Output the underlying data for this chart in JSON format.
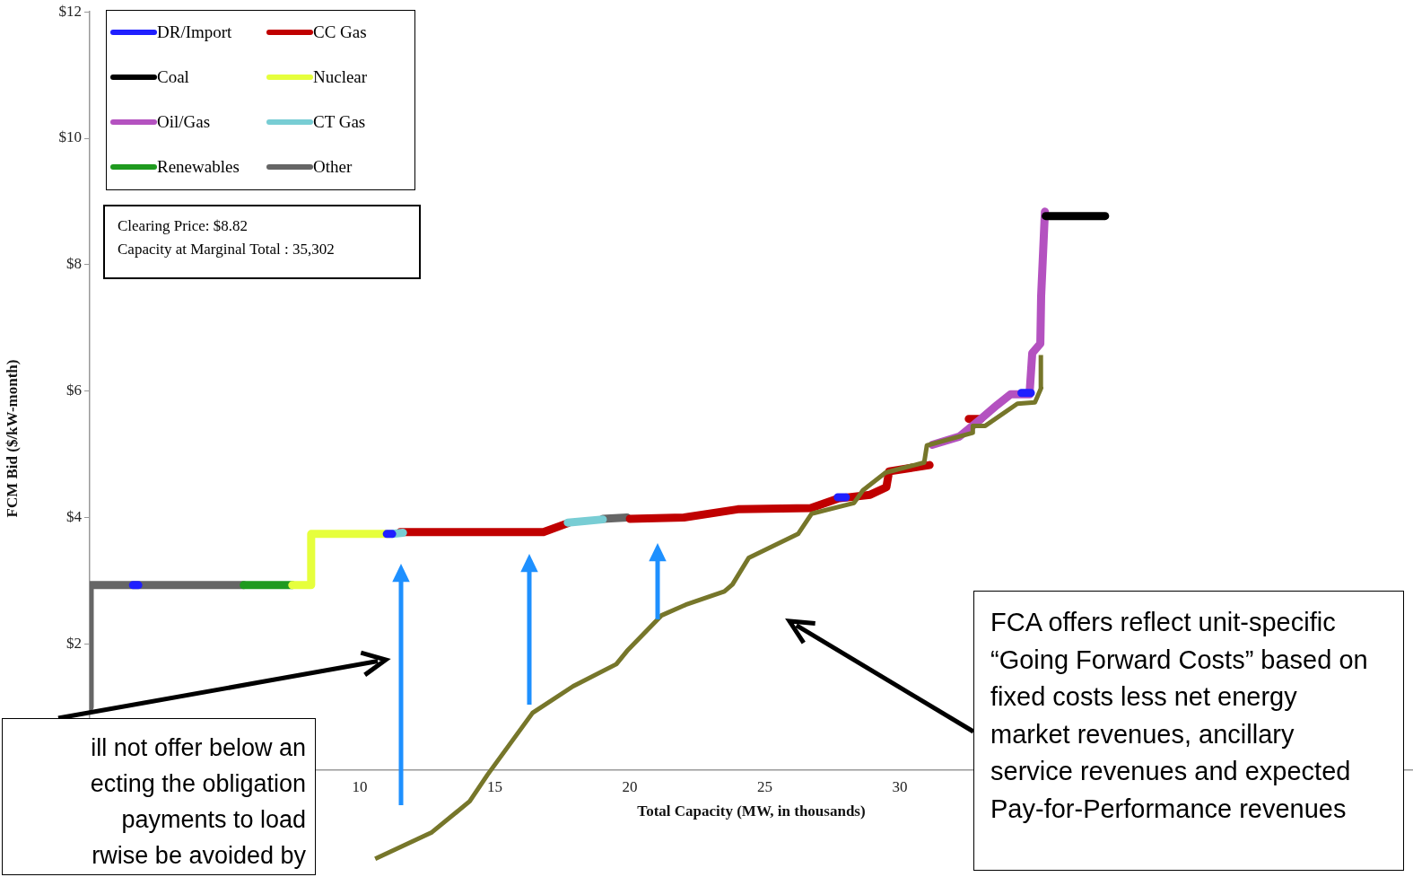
{
  "chart_data": {
    "type": "line",
    "xlabel": "Total Capacity (MW, in thousands)",
    "ylabel": "FCM Bid ($/kW-month)",
    "xlim": [
      0,
      49
    ],
    "xticks": [
      10,
      15,
      20,
      25,
      30
    ],
    "ylim": [
      -1.5,
      12
    ],
    "yticks": [
      {
        "value": 2,
        "label": "$2"
      },
      {
        "value": 4,
        "label": "$4"
      },
      {
        "value": 6,
        "label": "$6"
      },
      {
        "value": 8,
        "label": "$8"
      },
      {
        "value": 10,
        "label": "$10"
      },
      {
        "value": 12,
        "label": "$12"
      }
    ],
    "legend": "top left",
    "series": [
      {
        "name": "Other",
        "color": "#666666",
        "x": [
          0,
          0,
          5.7,
          null,
          19.0,
          19.9
        ],
        "values": [
          1.0,
          2.93,
          2.93,
          null,
          3.98,
          4.0
        ]
      },
      {
        "name": "Renewables",
        "color": "#1f9a1f",
        "x": [
          5.7,
          7.5
        ],
        "values": [
          2.93,
          2.93
        ]
      },
      {
        "name": "Nuclear",
        "color": "#e6ff3c",
        "x": [
          7.5,
          8.2,
          8.2,
          11.1
        ],
        "values": [
          2.93,
          2.93,
          3.74,
          3.74
        ]
      },
      {
        "name": "CC Gas",
        "color": "#c00000",
        "x": [
          11.5,
          16.8,
          17.7,
          null,
          20.0,
          22.0,
          24.0,
          26.7,
          27.7,
          28.9,
          29.5,
          29.6,
          31.1,
          null,
          32.55,
          33.0
        ],
        "values": [
          3.77,
          3.77,
          3.91,
          null,
          3.98,
          4.0,
          4.13,
          4.15,
          4.3,
          4.36,
          4.48,
          4.73,
          4.83,
          null,
          5.56,
          5.56
        ]
      },
      {
        "name": "CT Gas",
        "color": "#78cdd4",
        "x": [
          11.2,
          11.6,
          null,
          17.7,
          19.0
        ],
        "values": [
          3.74,
          3.76,
          null,
          3.92,
          3.97
        ]
      },
      {
        "name": "Oil/Gas",
        "color": "#b452c0",
        "x": [
          31.2,
          32.2,
          33.0,
          33.6,
          34.1,
          34.8,
          34.9,
          35.2,
          35.23,
          35.37
        ],
        "values": [
          5.15,
          5.28,
          5.56,
          5.78,
          5.95,
          5.95,
          6.6,
          6.75,
          7.5,
          8.84
        ]
      },
      {
        "name": "DR/Import",
        "color": "#1f1fff",
        "x": [
          1.6,
          1.8,
          null,
          11.0,
          11.2,
          null,
          27.7,
          28.0,
          null,
          34.5,
          34.85
        ],
        "values": [
          2.93,
          2.93,
          null,
          3.74,
          3.74,
          null,
          4.32,
          4.32,
          null,
          5.97,
          5.97
        ]
      },
      {
        "name": "Coal",
        "color": "#000000",
        "x": [
          35.4,
          37.6
        ],
        "values": [
          8.77,
          8.77
        ]
      },
      {
        "color": "#76762a",
        "x": [
          10.57,
          12.67,
          14.07,
          14.73,
          16.4,
          17.9,
          19.5,
          19.9,
          21.17,
          22.07,
          23.5,
          23.8,
          24.4,
          26.23,
          26.73,
          28.3,
          28.63,
          29.47,
          30.9,
          31.0,
          32.7,
          32.7,
          33.16,
          34.35,
          35.0,
          35.23,
          35.22
        ],
        "values": [
          -1.4,
          -0.98,
          -0.49,
          -0.07,
          0.91,
          1.33,
          1.68,
          1.89,
          2.45,
          2.62,
          2.83,
          2.94,
          3.36,
          3.74,
          4.06,
          4.23,
          4.43,
          4.71,
          4.87,
          5.14,
          5.34,
          5.45,
          5.45,
          5.8,
          5.82,
          6.05,
          6.57
        ]
      }
    ],
    "annotations": [
      "Clearing  Price:  $8.82\nCapacity at Marginal Total : 35,302",
      "ill not offer below an\necting the obligation\npayments to load\nrwise be avoided by",
      "FCA offers reflect unit-specific “Going Forward Costs” based on fixed costs less net energy market revenues, ancillary service revenues and expected Pay-for-Performance revenues"
    ]
  }
}
